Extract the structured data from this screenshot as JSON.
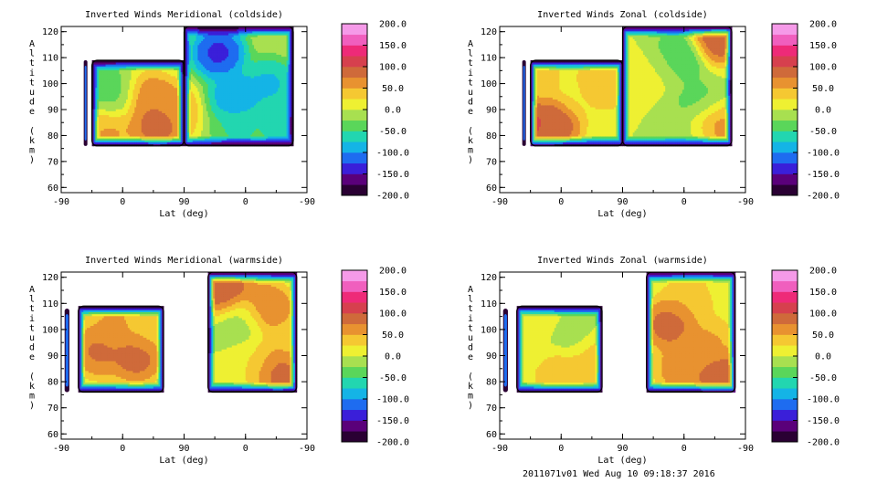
{
  "footer": "2011071v01 Wed Aug 10 09:18:37 2016",
  "colorbar": {
    "ticks": [
      "200.0",
      "150.0",
      "100.0",
      "50.0",
      "0.0",
      "-50.0",
      "-100.0",
      "-150.0",
      "-200.0"
    ],
    "range": [
      -200,
      200
    ],
    "colors": [
      "#2a0033",
      "#5a007a",
      "#3a1fd9",
      "#1e6cf0",
      "#14b4e6",
      "#22d6b0",
      "#5ad65a",
      "#a8e050",
      "#eef032",
      "#f5c832",
      "#e89230",
      "#cf6a3a",
      "#d6404e",
      "#ee2a78",
      "#f05fbe",
      "#f59ae8"
    ]
  },
  "chart_data": [
    {
      "type": "heatmap",
      "title": "Inverted Winds Meridional (coldside)",
      "xlabel": "Lat (deg)",
      "ylabel": "Altitude (km)",
      "x_ticks": [
        "-90",
        "0",
        "90",
        "0",
        "-90"
      ],
      "y_ticks": [
        60,
        70,
        80,
        90,
        100,
        110,
        120
      ],
      "ylim": [
        58,
        122
      ],
      "zlim": [
        -200,
        200
      ],
      "blobs": [
        {
          "lat": -15,
          "alt": 96,
          "value": -40
        },
        {
          "lat": 40,
          "alt": 94,
          "value": 80
        },
        {
          "lat": -55,
          "alt": 105,
          "value": -60
        },
        {
          "lat": -20,
          "alt": 82,
          "value": 60
        },
        {
          "lat": 50,
          "alt": 84,
          "value": 100
        },
        {
          "lat": 70,
          "alt": 90,
          "value": 70
        },
        {
          "lat": 140,
          "alt": 112,
          "value": -150
        },
        {
          "lat": 165,
          "alt": 95,
          "value": -110
        },
        {
          "lat": 215,
          "alt": 100,
          "value": -90
        },
        {
          "lat": 240,
          "alt": 84,
          "value": -80
        },
        {
          "lat": 170,
          "alt": 82,
          "value": -60
        }
      ]
    },
    {
      "type": "heatmap",
      "title": "Inverted Winds Zonal (coldside)",
      "xlabel": "Lat (deg)",
      "ylabel": "Altitude (km)",
      "x_ticks": [
        "-90",
        "0",
        "90",
        "0",
        "-90"
      ],
      "y_ticks": [
        60,
        70,
        80,
        90,
        100,
        110,
        120
      ],
      "ylim": [
        58,
        122
      ],
      "zlim": [
        -200,
        200
      ],
      "blobs": [
        {
          "lat": -60,
          "alt": 85,
          "value": 130
        },
        {
          "lat": -10,
          "alt": 85,
          "value": 110
        },
        {
          "lat": 30,
          "alt": 96,
          "value": 20
        },
        {
          "lat": -40,
          "alt": 103,
          "value": 50
        },
        {
          "lat": 60,
          "alt": 100,
          "value": 60
        },
        {
          "lat": 140,
          "alt": 105,
          "value": 10
        },
        {
          "lat": 170,
          "alt": 110,
          "value": -60
        },
        {
          "lat": 200,
          "alt": 92,
          "value": -40
        },
        {
          "lat": 230,
          "alt": 118,
          "value": 110
        },
        {
          "lat": 220,
          "alt": 84,
          "value": 80
        },
        {
          "lat": 190,
          "alt": 80,
          "value": -20
        }
      ]
    },
    {
      "type": "heatmap",
      "title": "Inverted Winds Meridional (warmside)",
      "xlabel": "Lat (deg)",
      "ylabel": "Altitude (km)",
      "x_ticks": [
        "-90",
        "0",
        "90",
        "0",
        "-90"
      ],
      "y_ticks": [
        60,
        70,
        80,
        90,
        100,
        110,
        120
      ],
      "ylim": [
        58,
        122
      ],
      "zlim": [
        -200,
        200
      ],
      "blobs": [
        {
          "lat": -35,
          "alt": 92,
          "value": 90
        },
        {
          "lat": 20,
          "alt": 90,
          "value": 100
        },
        {
          "lat": -10,
          "alt": 103,
          "value": 60
        },
        {
          "lat": 40,
          "alt": 100,
          "value": 40
        },
        {
          "lat": 150,
          "alt": 115,
          "value": 110
        },
        {
          "lat": 175,
          "alt": 103,
          "value": -20
        },
        {
          "lat": 210,
          "alt": 108,
          "value": 90
        },
        {
          "lat": 195,
          "alt": 88,
          "value": 20
        },
        {
          "lat": 225,
          "alt": 85,
          "value": 110
        },
        {
          "lat": 240,
          "alt": 95,
          "value": 40
        }
      ]
    },
    {
      "type": "heatmap",
      "title": "Inverted Winds Zonal (warmside)",
      "xlabel": "Lat (deg)",
      "ylabel": "Altitude (km)",
      "x_ticks": [
        "-90",
        "0",
        "90",
        "0",
        "-90"
      ],
      "y_ticks": [
        60,
        70,
        80,
        90,
        100,
        110,
        120
      ],
      "ylim": [
        58,
        122
      ],
      "zlim": [
        -200,
        200
      ],
      "blobs": [
        {
          "lat": -45,
          "alt": 95,
          "value": 0
        },
        {
          "lat": 10,
          "alt": 96,
          "value": -20
        },
        {
          "lat": 0,
          "alt": 85,
          "value": 60
        },
        {
          "lat": 45,
          "alt": 88,
          "value": 50
        },
        {
          "lat": -40,
          "alt": 103,
          "value": 30
        },
        {
          "lat": 160,
          "alt": 102,
          "value": 100
        },
        {
          "lat": 190,
          "alt": 112,
          "value": 50
        },
        {
          "lat": 215,
          "alt": 95,
          "value": 60
        },
        {
          "lat": 180,
          "alt": 85,
          "value": 80
        },
        {
          "lat": 235,
          "alt": 82,
          "value": 110
        },
        {
          "lat": 225,
          "alt": 115,
          "value": 20
        }
      ]
    }
  ]
}
